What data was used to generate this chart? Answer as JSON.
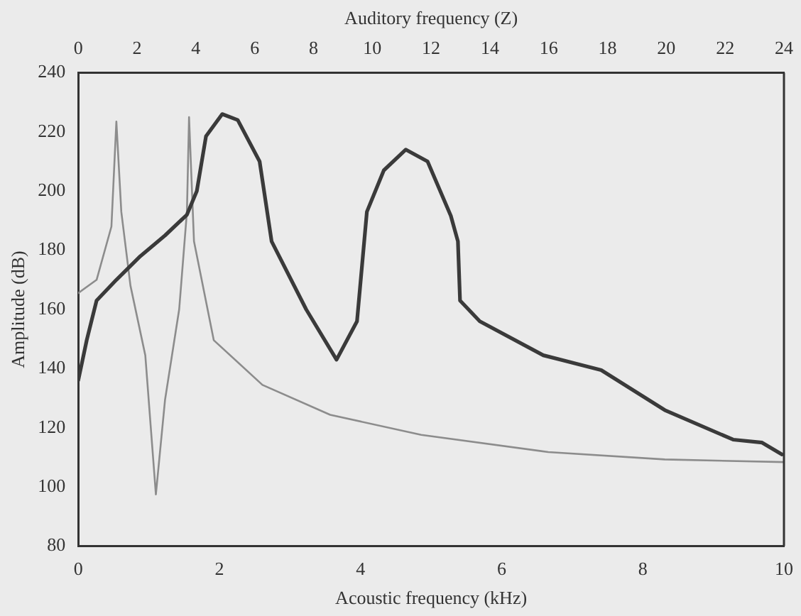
{
  "chart_data": {
    "type": "line",
    "xlabel": "Acoustic frequency (kHz)",
    "x2label": "Auditory frequency (Z)",
    "ylabel": "Amplitude (dB)",
    "xlim": [
      0,
      10
    ],
    "xticks": [
      0,
      2,
      4,
      6,
      8,
      10
    ],
    "x2lim": [
      0,
      24
    ],
    "x2ticks": [
      0,
      2,
      4,
      6,
      8,
      10,
      12,
      14,
      16,
      18,
      20,
      22,
      24
    ],
    "ylim": [
      80,
      240
    ],
    "yticks": [
      80,
      100,
      120,
      140,
      160,
      180,
      200,
      220,
      240
    ],
    "grid": false,
    "legend": false,
    "marker": "none",
    "line_style": "solid",
    "series": [
      {
        "color": "#3a3a3a",
        "x": [
          0,
          0.12,
          0.26,
          0.54,
          0.88,
          1.23,
          1.54,
          1.68,
          1.81,
          2.04,
          2.26,
          2.57,
          2.74,
          3.23,
          3.66,
          3.95,
          4.09,
          4.33,
          4.64,
          4.95,
          5.28,
          5.38,
          5.41,
          5.69,
          6.59,
          7.41,
          8.31,
          9.28,
          9.69,
          9.97
        ],
        "values": [
          136,
          149.6,
          163,
          170,
          178,
          185,
          192,
          200,
          218.5,
          226,
          224,
          210,
          183,
          160,
          143,
          156,
          193,
          207,
          214,
          210,
          191.6,
          183,
          163,
          156,
          144.5,
          139.5,
          126,
          116,
          115,
          111
        ]
      },
      {
        "color": "#8c8c8c",
        "x": [
          0,
          0.26,
          0.47,
          0.54,
          0.61,
          0.74,
          0.95,
          1.1,
          1.23,
          1.43,
          1.54,
          1.57,
          1.64,
          1.92,
          2.61,
          3.57,
          4.86,
          6.66,
          8.31,
          10
        ],
        "values": [
          165.5,
          170,
          188,
          223.5,
          193,
          168,
          144.5,
          97.5,
          129.5,
          160,
          193,
          225,
          183,
          149.6,
          134.5,
          124.4,
          117.6,
          111.8,
          109.3,
          108.4
        ]
      }
    ]
  }
}
